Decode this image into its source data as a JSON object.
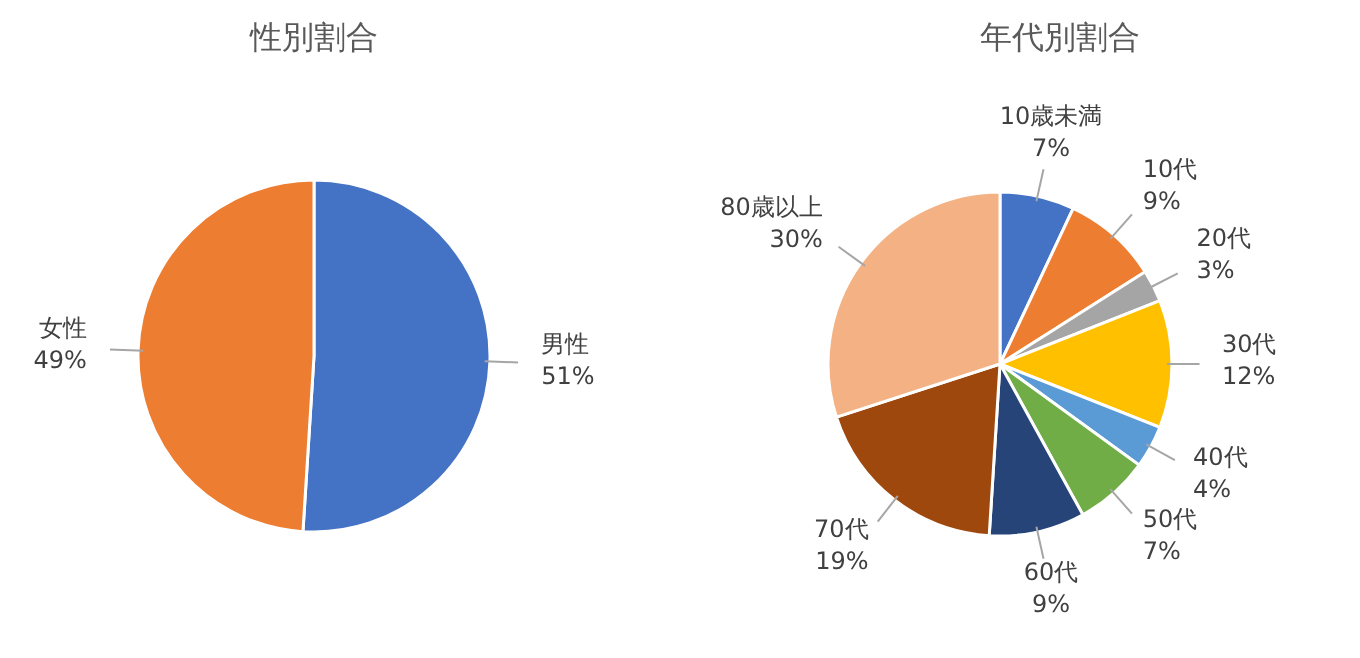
{
  "chart_data": [
    {
      "type": "pie",
      "title": "性別割合",
      "categories": [
        "男性",
        "女性"
      ],
      "values": [
        51,
        49
      ],
      "colors": [
        "#4472c4",
        "#ed7d31"
      ],
      "value_labels": [
        "51%",
        "49%"
      ]
    },
    {
      "type": "pie",
      "title": "年代別割合",
      "categories": [
        "10歳未満",
        "10代",
        "20代",
        "30代",
        "40代",
        "50代",
        "60代",
        "70代",
        "80歳以上"
      ],
      "values": [
        7,
        9,
        3,
        12,
        4,
        7,
        9,
        19,
        30
      ],
      "colors": [
        "#4472c4",
        "#ed7d31",
        "#a5a5a5",
        "#ffc000",
        "#5b9bd5",
        "#70ad47",
        "#264478",
        "#9e480e",
        "#f4b183"
      ],
      "value_labels": [
        "7%",
        "9%",
        "3%",
        "12%",
        "4%",
        "7%",
        "9%",
        "19%",
        "30%"
      ]
    }
  ]
}
